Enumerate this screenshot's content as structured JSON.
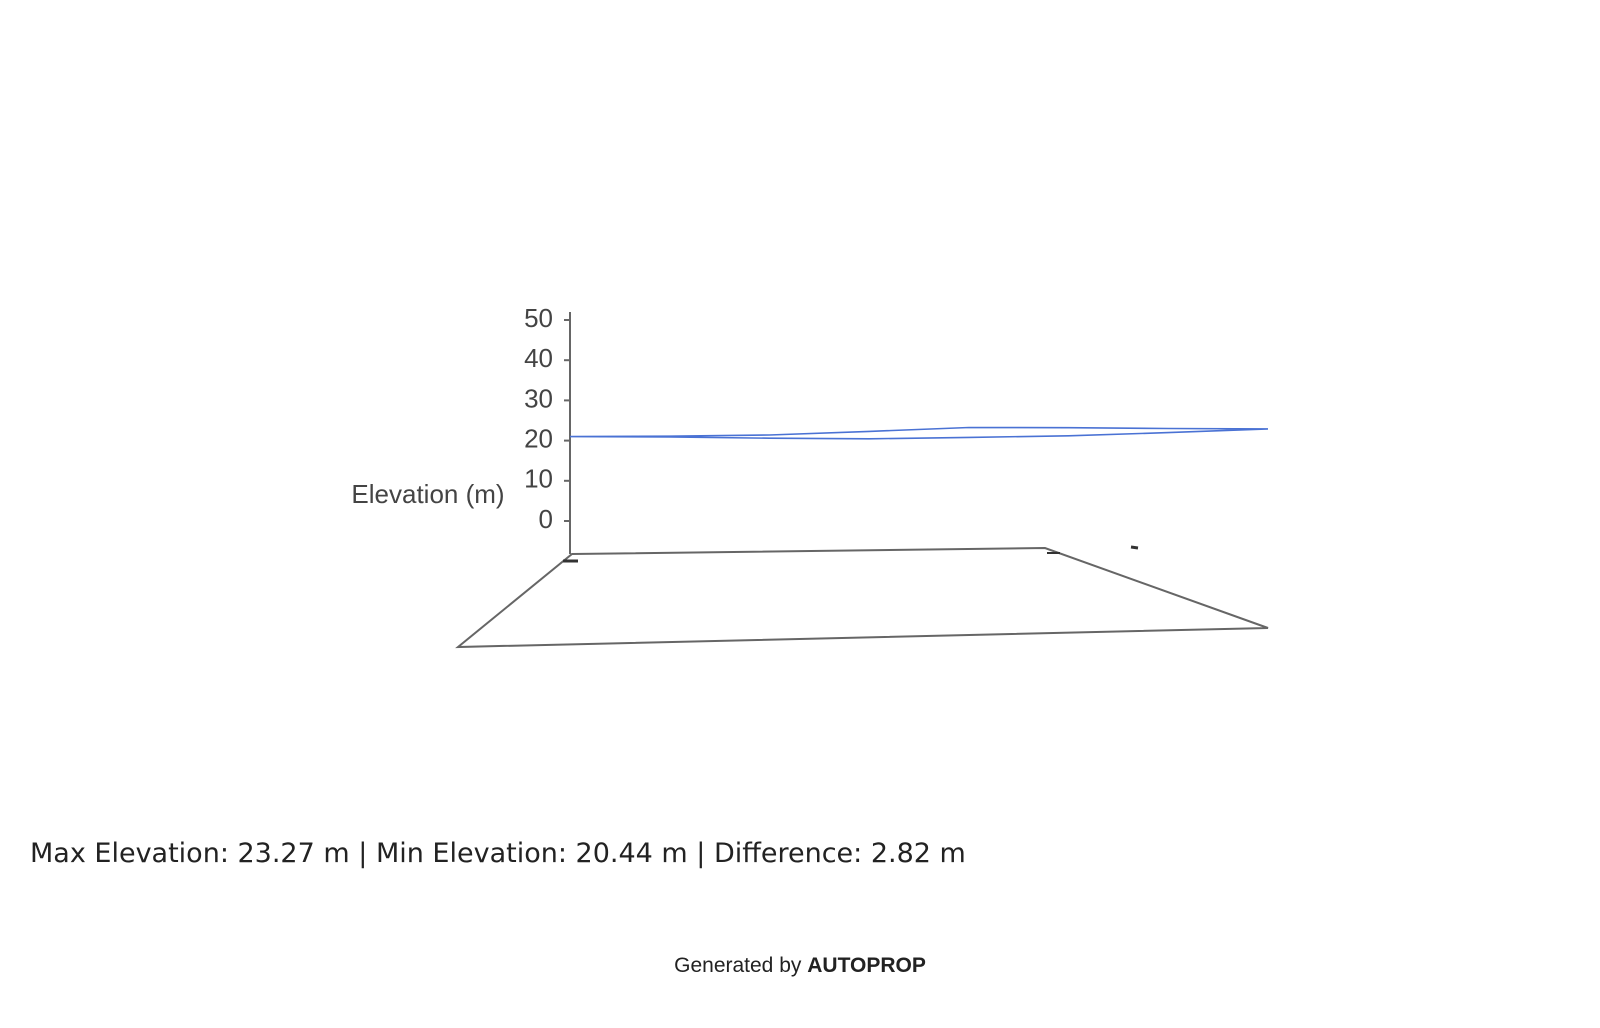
{
  "chart_data": {
    "type": "line3d",
    "y_label": "Elevation (m)",
    "ylim": [
      0,
      50
    ],
    "yticks": [
      0,
      10,
      20,
      30,
      40,
      50
    ],
    "series": [
      {
        "color": "#4a72d4",
        "values": [
          21.0,
          21.1,
          21.4,
          22.3,
          23.27,
          23.2,
          23.0,
          22.9,
          22.0,
          21.2,
          20.8,
          20.44,
          20.6,
          20.9,
          21.0
        ]
      }
    ]
  },
  "summary": "Max Elevation: 23.27 m | Min Elevation: 20.44 m | Difference: 2.82 m",
  "footer": {
    "prefix": "Generated by",
    "brand": "AUTOPROP"
  }
}
